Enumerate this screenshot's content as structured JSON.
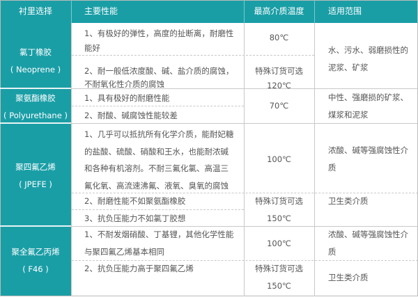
{
  "headers": [
    "衬里选择",
    "主要性能",
    "最高介质温度",
    "适用范围"
  ],
  "accent_color": "#1a9ea6",
  "rows": [
    {
      "lining": [
        "氯丁橡胶",
        "( Neoprene )"
      ],
      "props": [
        [
          "1、有极好的弹性，高度的扯断离，耐磨性",
          "能好"
        ],
        [
          "2、耐一般低浓度酸、碱、盐介质的腐蚀，",
          "不耐氧化性介质的腐蚀"
        ]
      ],
      "temp": [
        "80℃",
        "特殊订货可选",
        "120℃"
      ],
      "range": [
        [
          "水、污水、弱磨损性的",
          "泥浆、矿浆"
        ]
      ]
    },
    {
      "lining": [
        "聚氨酯橡胶",
        "( Polyurethane )"
      ],
      "props": [
        [
          "1、具有极好的耐磨性能"
        ],
        [
          "2、耐酸、碱腐蚀性能较差"
        ]
      ],
      "temp": [
        "70℃"
      ],
      "range": [
        [
          "中性、强磨损的矿浆、",
          "煤浆和泥浆"
        ]
      ]
    },
    {
      "lining": [
        "聚四氟乙烯",
        "( JPEFE )"
      ],
      "props": [
        [
          "1、几乎可以抵抗所有化学介质，能耐妃糖",
          "的盐酸、硫酸、硝酸和王水，也能耐浓碱",
          "和各种有机溶剂。不耐三氟化氯、高温三",
          "氟化氧、高流速沸氟、液氧、臭氧的腐蚀"
        ],
        [
          "2、耐磨性能不如聚氨酯橡胶"
        ],
        [
          "3、抗负压能力不如氯丁胶想"
        ]
      ],
      "temp": [
        "100℃",
        "特殊订货可选",
        "150℃"
      ],
      "range": [
        [
          "浓酸、碱等强腐蚀性介",
          "质"
        ],
        [
          "卫生类介质"
        ]
      ]
    },
    {
      "lining": [
        "聚全氟乙丙烯",
        "( F46 )"
      ],
      "props": [
        [
          "1、不耐发烟硝酸、丁基锂，其他化学性能",
          "与聚四氟乙烯基本相同"
        ],
        [
          "2、抗负压能力高于聚四氟乙烯"
        ]
      ],
      "temp": [
        "100℃",
        "特殊订货可选",
        "150℃"
      ],
      "range": [
        [
          "浓酸、碱等强腐蚀性介",
          "质"
        ],
        [
          "卫生类介质"
        ]
      ]
    }
  ]
}
